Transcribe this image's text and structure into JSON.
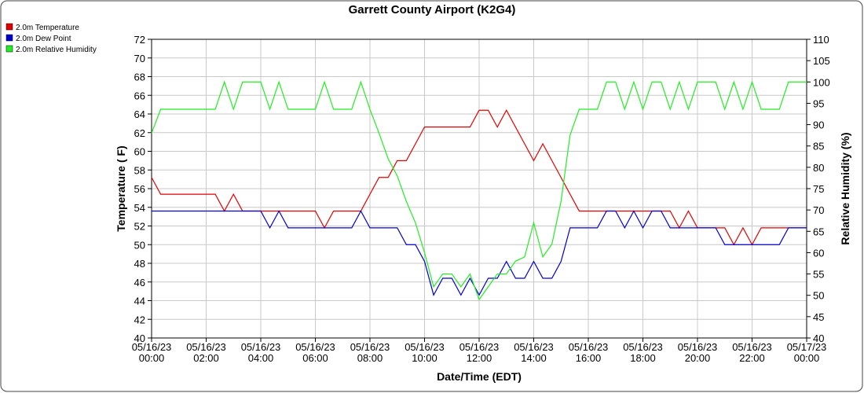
{
  "chart_data": {
    "type": "line",
    "title": "Garrett County Airport (K2G4)",
    "x_label": "Date/Time (EDT)",
    "y_label": "Temperature ( F)",
    "y2_label": "Relative Humidity (%)",
    "x": [
      0,
      20,
      40,
      60,
      80,
      100,
      120,
      140,
      160,
      180,
      200,
      220,
      240,
      260,
      280,
      300,
      320,
      340,
      360,
      380,
      400,
      420,
      440,
      460,
      480,
      500,
      520,
      540,
      560,
      580,
      600,
      620,
      640,
      660,
      680,
      700,
      720,
      740,
      760,
      780,
      800,
      820,
      840,
      860,
      880,
      900,
      920,
      940,
      960,
      980,
      1000,
      1020,
      1040,
      1060,
      1080,
      1100,
      1120,
      1140,
      1160,
      1180,
      1200,
      1220,
      1240,
      1260,
      1280,
      1300,
      1320,
      1340,
      1360,
      1380,
      1400,
      1420,
      1440
    ],
    "xlim": [
      0,
      1440
    ],
    "xticks": [
      {
        "value": 0,
        "label": "05/16/23 00:00"
      },
      {
        "value": 120,
        "label": "05/16/23 02:00"
      },
      {
        "value": 240,
        "label": "05/16/23 04:00"
      },
      {
        "value": 360,
        "label": "05/16/23 06:00"
      },
      {
        "value": 480,
        "label": "05/16/23 08:00"
      },
      {
        "value": 600,
        "label": "05/16/23 10:00"
      },
      {
        "value": 720,
        "label": "05/16/23 12:00"
      },
      {
        "value": 840,
        "label": "05/16/23 14:00"
      },
      {
        "value": 960,
        "label": "05/16/23 16:00"
      },
      {
        "value": 1080,
        "label": "05/16/23 18:00"
      },
      {
        "value": 1200,
        "label": "05/16/23 20:00"
      },
      {
        "value": 1320,
        "label": "05/16/23 22:00"
      },
      {
        "value": 1440,
        "label": "05/17/23 00:00"
      }
    ],
    "ylim": [
      40,
      72
    ],
    "yticks": [
      40,
      42,
      44,
      46,
      48,
      50,
      52,
      54,
      56,
      58,
      60,
      62,
      64,
      66,
      68,
      70,
      72
    ],
    "y2lim": [
      40,
      110
    ],
    "y2ticks": [
      40,
      45,
      50,
      55,
      60,
      65,
      70,
      75,
      80,
      85,
      90,
      95,
      100,
      105,
      110
    ],
    "grid": true,
    "legend": "top-left",
    "series": [
      {
        "name": "2.0m Temperature",
        "color": "#e00000",
        "axis": "y",
        "values": [
          57.2,
          55.4,
          55.4,
          55.4,
          55.4,
          55.4,
          55.4,
          55.4,
          53.6,
          55.4,
          53.6,
          53.6,
          53.6,
          53.6,
          53.6,
          53.6,
          53.6,
          53.6,
          53.6,
          51.8,
          53.6,
          53.6,
          53.6,
          53.6,
          55.4,
          57.2,
          57.2,
          59,
          59,
          60.8,
          62.6,
          62.6,
          62.6,
          62.6,
          62.6,
          62.6,
          64.4,
          64.4,
          62.6,
          64.4,
          62.6,
          60.8,
          59,
          60.8,
          59,
          57.2,
          55.4,
          53.6,
          53.6,
          53.6,
          53.6,
          53.6,
          53.6,
          53.6,
          53.6,
          53.6,
          53.6,
          53.6,
          51.8,
          53.6,
          51.8,
          51.8,
          51.8,
          51.8,
          50,
          51.8,
          50,
          51.8,
          51.8,
          51.8,
          51.8,
          51.8,
          51.8
        ]
      },
      {
        "name": "2.0m Dew Point",
        "color": "#0000cc",
        "axis": "y",
        "values": [
          53.6,
          53.6,
          53.6,
          53.6,
          53.6,
          53.6,
          53.6,
          53.6,
          53.6,
          53.6,
          53.6,
          53.6,
          53.6,
          51.8,
          53.6,
          51.8,
          51.8,
          51.8,
          51.8,
          51.8,
          51.8,
          51.8,
          51.8,
          53.6,
          51.8,
          51.8,
          51.8,
          51.8,
          50,
          50,
          48.2,
          44.6,
          46.4,
          46.4,
          44.6,
          46.4,
          44.6,
          46.4,
          46.4,
          48.2,
          46.4,
          46.4,
          48.2,
          46.4,
          46.4,
          48.2,
          51.8,
          51.8,
          51.8,
          51.8,
          53.6,
          53.6,
          51.8,
          53.6,
          51.8,
          53.6,
          53.6,
          51.8,
          51.8,
          51.8,
          51.8,
          51.8,
          51.8,
          50,
          50,
          50,
          50,
          50,
          50,
          50,
          51.8,
          51.8,
          51.8
        ]
      },
      {
        "name": "2.0m Relative Humidity",
        "color": "#22ee22",
        "axis": "y2",
        "values": [
          88,
          93.6,
          93.6,
          93.6,
          93.6,
          93.6,
          93.6,
          93.6,
          100,
          93.6,
          100,
          100,
          100,
          93.6,
          100,
          93.6,
          93.6,
          93.6,
          93.6,
          100,
          93.6,
          93.6,
          93.6,
          100,
          93.6,
          88,
          82,
          78,
          72,
          67,
          60,
          52,
          55,
          55,
          52,
          55,
          49,
          52,
          55,
          55,
          58,
          59,
          67,
          59,
          62,
          72,
          87.6,
          93.6,
          93.6,
          93.6,
          100,
          100,
          93.6,
          100,
          93.6,
          100,
          100,
          93.6,
          100,
          93.6,
          100,
          100,
          100,
          93.6,
          100,
          93.6,
          100,
          93.6,
          93.6,
          93.6,
          100,
          100,
          100
        ]
      }
    ]
  }
}
